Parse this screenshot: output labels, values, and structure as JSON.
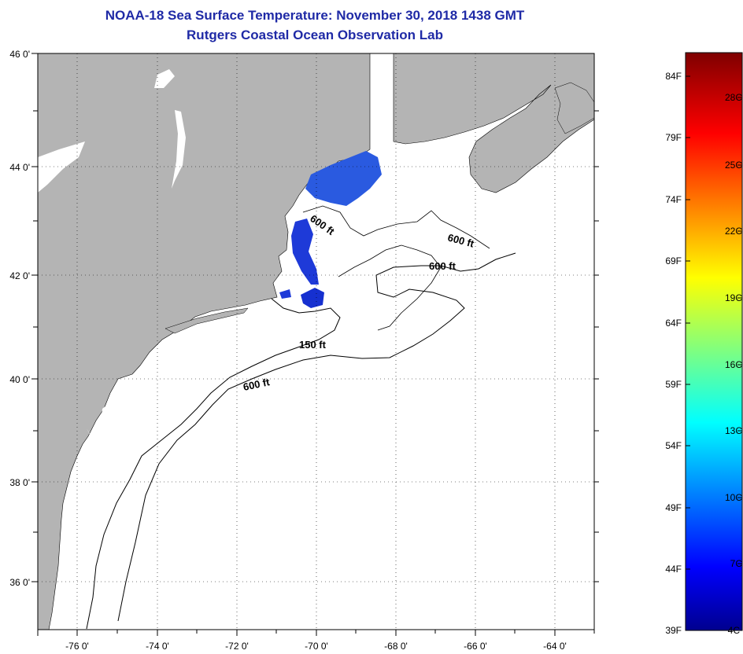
{
  "title_line1": "NOAA-18 Sea Surface Temperature:  November 30, 2018 1438 GMT",
  "title_line2": "Rutgers Coastal Ocean Observation Lab",
  "map": {
    "lon_range": [
      -77,
      -63
    ],
    "lat_range": [
      35,
      46
    ],
    "lon_ticks": [
      "-76 0'",
      "-74 0'",
      "-72 0'",
      "-70 0'",
      "-68 0'",
      "-66 0'",
      "-64 0'"
    ],
    "lat_ticks": [
      "46 0'",
      "44 0'",
      "42 0'",
      "40 0'",
      "38 0'",
      "36 0'"
    ],
    "grid": "dotted",
    "land_color": "#b4b4b4",
    "ocean_color": "#ffffff"
  },
  "contour_labels": [
    "600 ft",
    "600 ft",
    "600 ft",
    "150 ft",
    "600 ft"
  ],
  "colorbar": {
    "fahrenheit_labels": [
      "84F",
      "79F",
      "74F",
      "69F",
      "64F",
      "59F",
      "54F",
      "49F",
      "44F",
      "39F"
    ],
    "celsius_labels": [
      "28C",
      "25C",
      "22C",
      "19C",
      "16C",
      "13C",
      "10C",
      "7C",
      "4C"
    ],
    "colormap": "jet",
    "range_f": [
      39,
      86
    ]
  },
  "sst_color": "#2a5ae0"
}
